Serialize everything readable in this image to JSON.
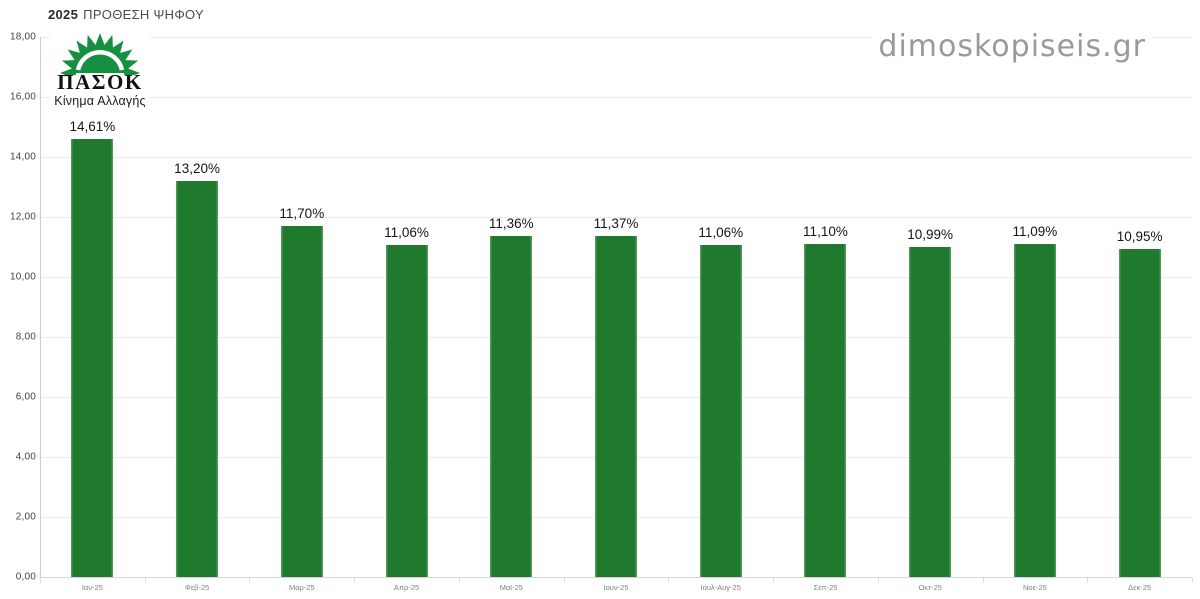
{
  "header": {
    "title_year": "2025",
    "title_rest": "ΠΡΟΘΕΣΗ ΨΗΦΟΥ",
    "watermark": "dimoskopiseis.gr"
  },
  "logo": {
    "name": "ΠΑΣΟΚ",
    "subtitle": "Κίνημα Αλλαγής",
    "sun_color": "#149040"
  },
  "chart_data": {
    "type": "bar",
    "title": "2025 ΠΡΟΘΕΣΗ ΨΗΦΟΥ",
    "categories": [
      "Ιαν-25",
      "Φεβ-25",
      "Μαρ-25",
      "Απρ-25",
      "Μαϊ-25",
      "Ιουν-25",
      "Ιουλ-Αυγ-25",
      "Σεπ-25",
      "Οκτ-25",
      "Νοε-25",
      "Δεκ-25"
    ],
    "values": [
      14.61,
      13.2,
      11.7,
      11.06,
      11.36,
      11.37,
      11.06,
      11.1,
      10.99,
      11.09,
      10.95
    ],
    "value_labels": [
      "14,61%",
      "13,20%",
      "11,70%",
      "11,06%",
      "11,36%",
      "11,37%",
      "11,06%",
      "11,10%",
      "10,99%",
      "11,09%",
      "10,95%"
    ],
    "xlabel": "",
    "ylabel": "",
    "ylim": [
      0,
      18
    ],
    "ytick_step": 2,
    "ytick_labels": [
      "0,00",
      "2,00",
      "4,00",
      "6,00",
      "8,00",
      "10,00",
      "12,00",
      "14,00",
      "16,00",
      "18,00"
    ],
    "bar_color": "#1f7a2d",
    "grid": true,
    "legend": "none"
  }
}
